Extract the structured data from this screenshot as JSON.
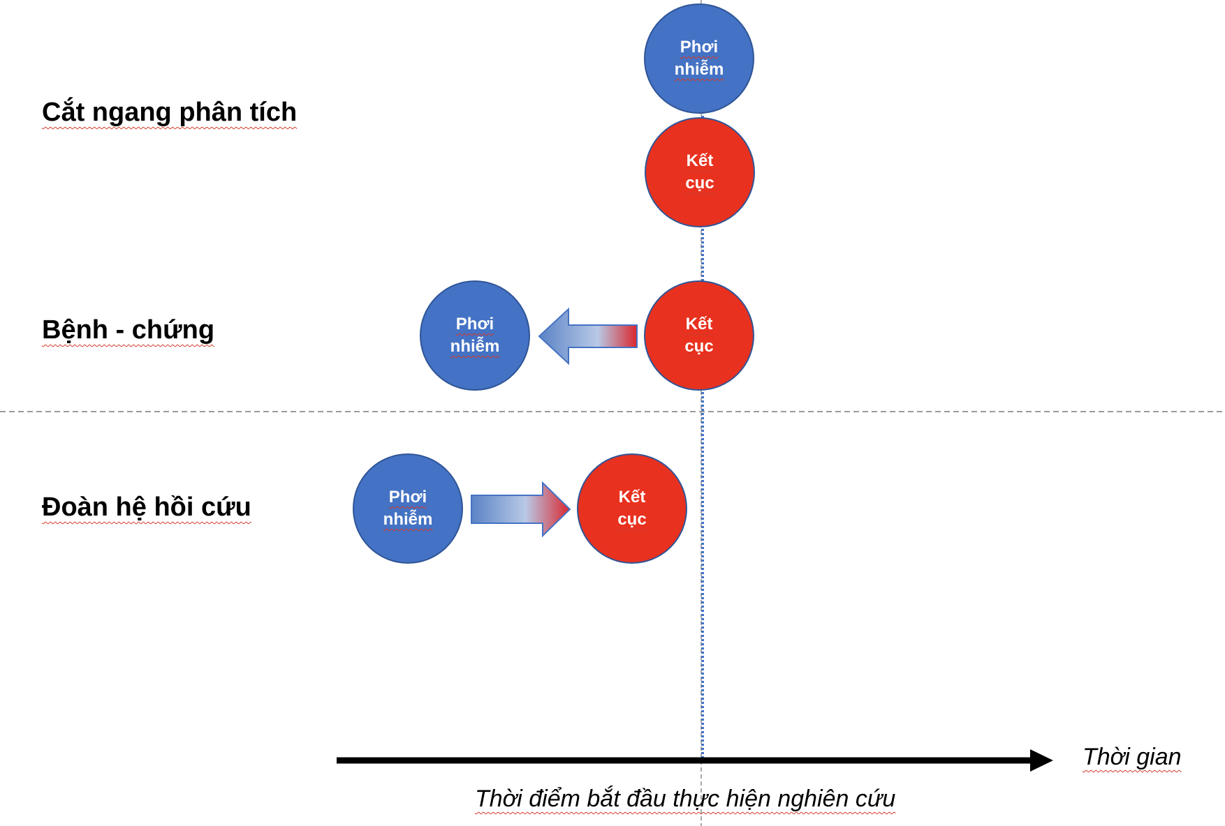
{
  "rows": {
    "cross_sectional": "Cắt ngang phân tích",
    "case_control": "Bệnh - chứng",
    "retro_cohort": "Đoàn hệ hồi cứu"
  },
  "nodes": {
    "exposure_line1": "Phơi",
    "exposure_line2": "nhiễm",
    "outcome_line1": "Kết",
    "outcome_line2": "cục"
  },
  "axis": {
    "time_label": "Thời gian",
    "study_start_label": "Thời điểm bắt đầu thực hiện nghiên cứu"
  },
  "colors": {
    "exposure": "#4472c4",
    "outcome": "#e8311f",
    "arrow_gradient_start": "#5b83c6",
    "arrow_gradient_mid": "#b8c9e6",
    "arrow_gradient_end": "#d9272e",
    "reference_line": "#4472c4"
  },
  "icons": {
    "case_control_arrow": "arrow-left",
    "cohort_arrow": "arrow-right",
    "time_axis": "arrow-right"
  }
}
